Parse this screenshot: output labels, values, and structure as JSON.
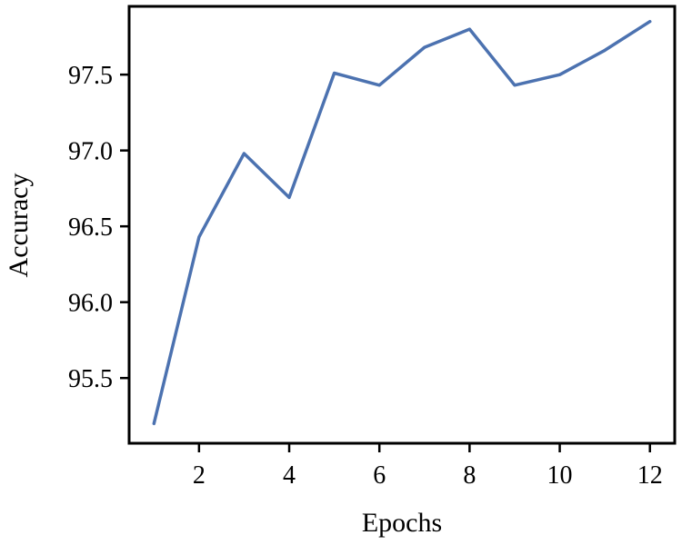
{
  "chart_data": {
    "type": "line",
    "title": "",
    "xlabel": "Epochs",
    "ylabel": "Accuracy",
    "xlim": [
      0.45,
      12.55
    ],
    "ylim": [
      95.07,
      97.95
    ],
    "xticks": [
      2,
      4,
      6,
      8,
      10,
      12
    ],
    "xtick_labels": [
      "2",
      "4",
      "6",
      "8",
      "10",
      "12"
    ],
    "yticks": [
      95.5,
      96.0,
      96.5,
      97.0,
      97.5
    ],
    "ytick_labels": [
      "95.5",
      "96.0",
      "96.5",
      "97.0",
      "97.5"
    ],
    "grid": false,
    "legend": "none",
    "x": [
      1,
      2,
      3,
      4,
      5,
      6,
      7,
      8,
      9,
      10,
      11,
      12
    ],
    "series": [
      {
        "color": "#4C72B0",
        "values": [
          95.2,
          96.43,
          96.98,
          96.69,
          97.51,
          97.43,
          97.68,
          97.8,
          97.43,
          97.5,
          97.66,
          97.85
        ]
      }
    ]
  }
}
